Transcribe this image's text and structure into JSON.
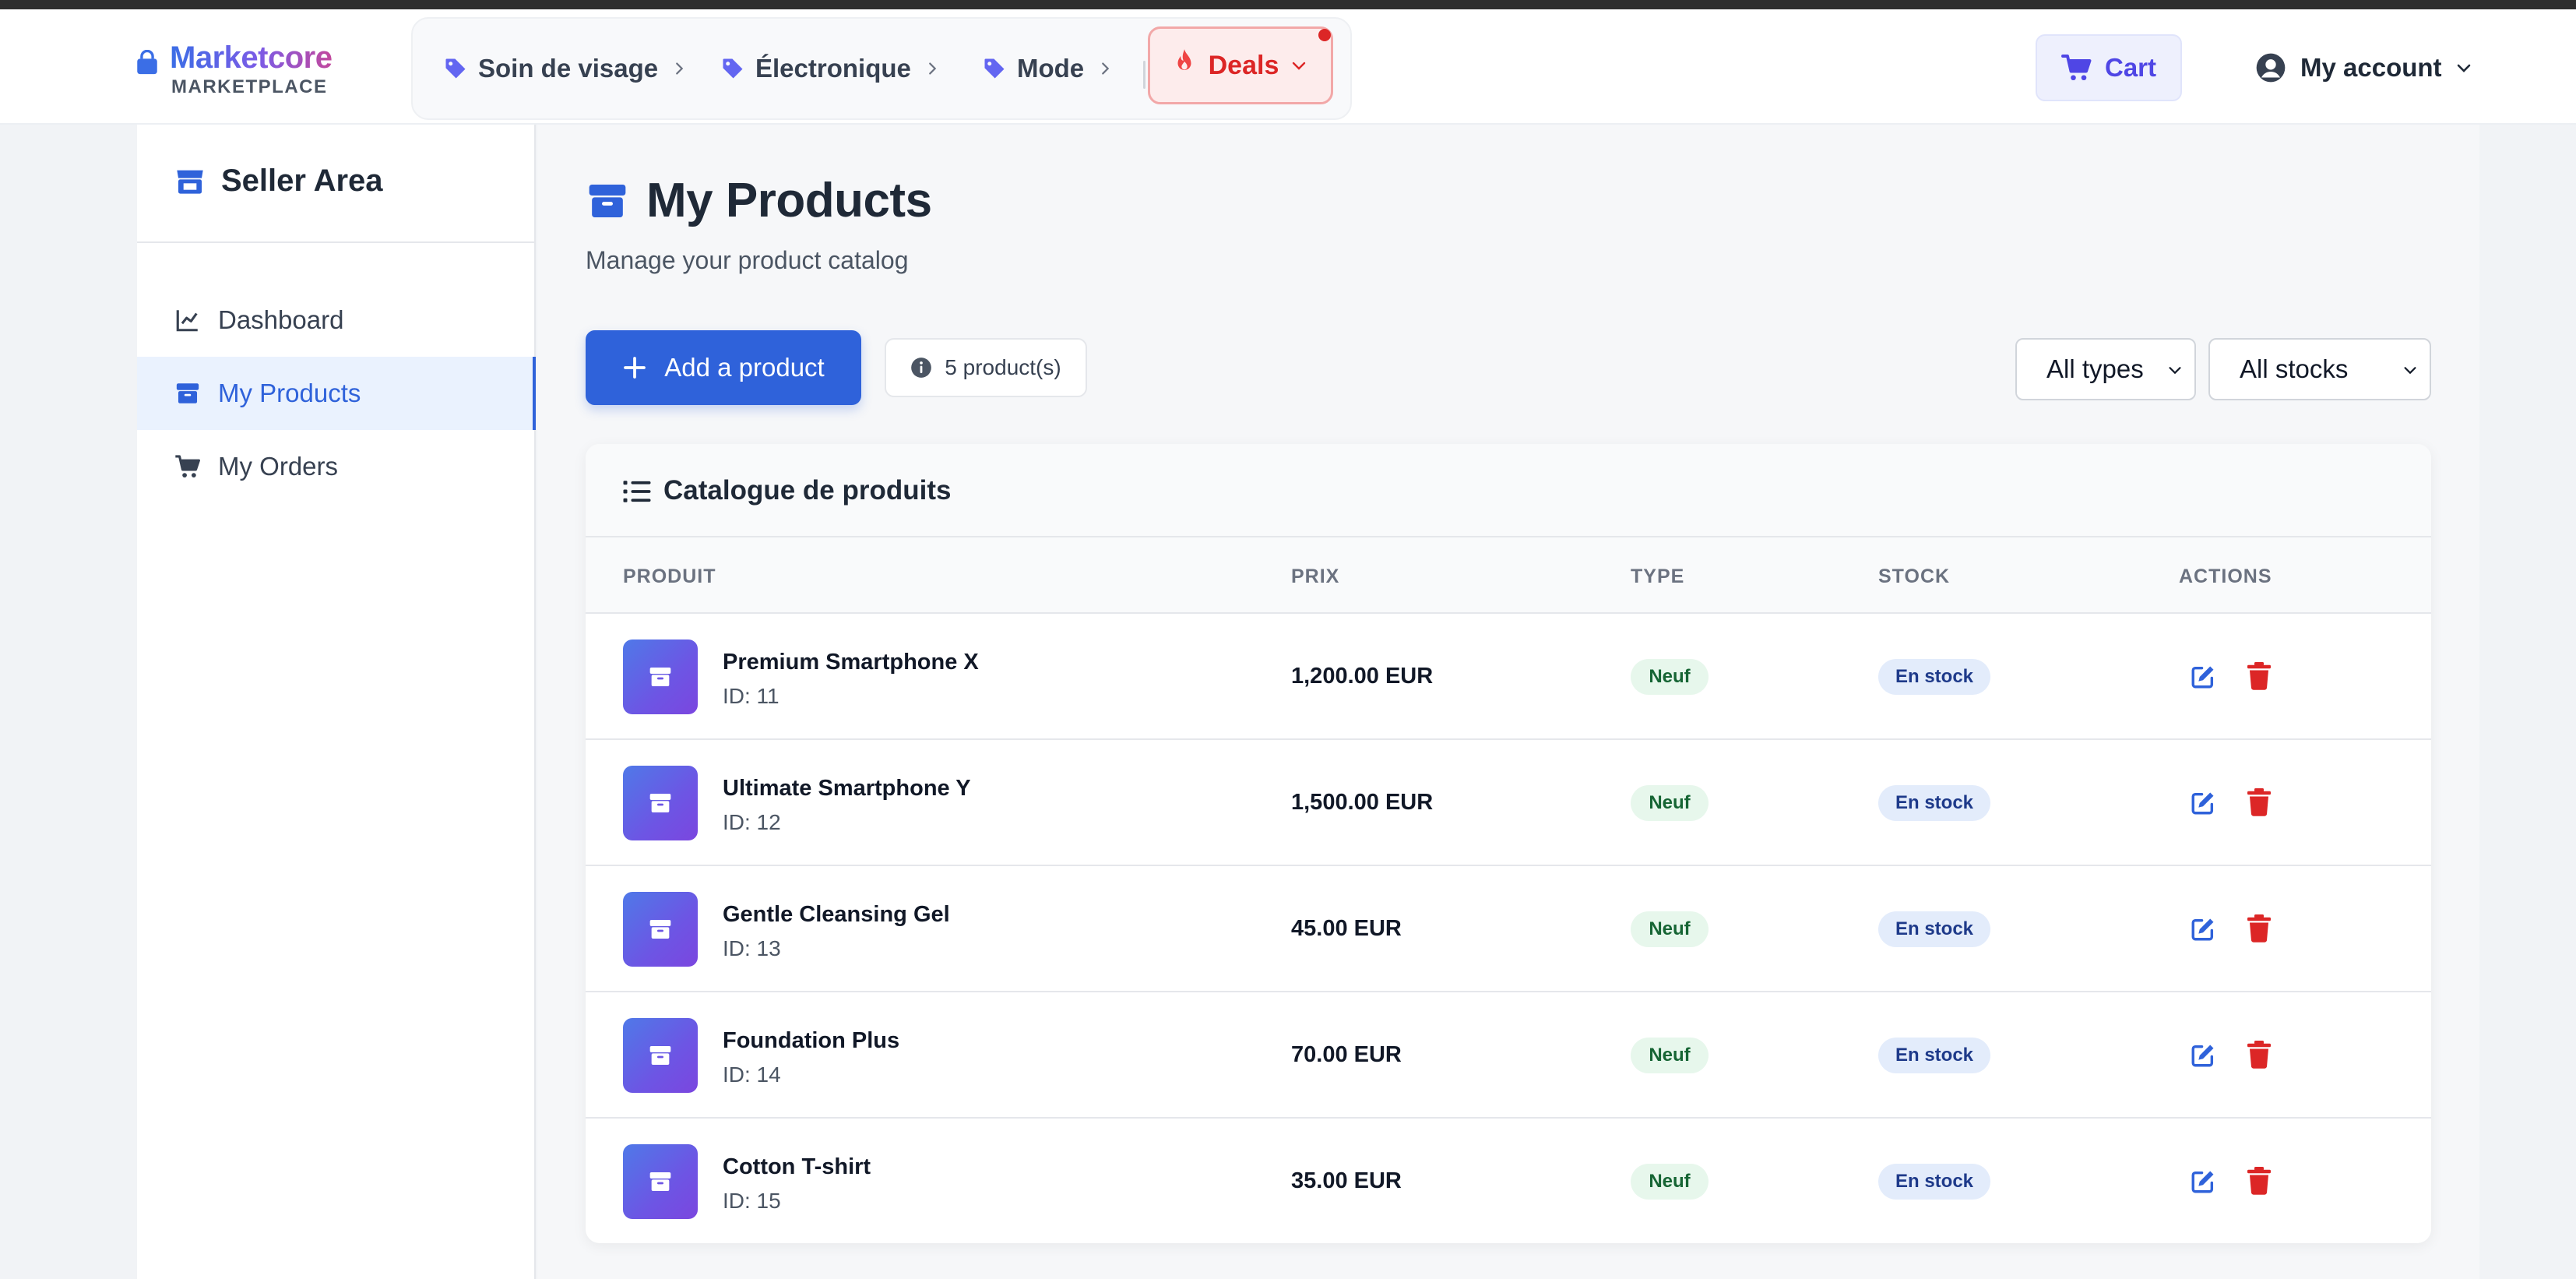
{
  "brand": {
    "name": "Marketcore",
    "tagline": "MARKETPLACE"
  },
  "categories": [
    {
      "label": "Soin de visage"
    },
    {
      "label": "Électronique"
    },
    {
      "label": "Mode"
    }
  ],
  "deals": {
    "label": "Deals"
  },
  "cart": {
    "label": "Cart"
  },
  "account": {
    "label": "My account"
  },
  "sidebar": {
    "title": "Seller Area",
    "items": [
      {
        "label": "Dashboard",
        "icon": "chart-line-icon"
      },
      {
        "label": "My Products",
        "icon": "box-icon",
        "active": true
      },
      {
        "label": "My Orders",
        "icon": "cart-icon"
      }
    ]
  },
  "main": {
    "title": "My Products",
    "subtitle": "Manage your product catalog",
    "add_button": "Add a product",
    "count_label": "5 product(s)",
    "filters": {
      "type": "All types",
      "stock": "All stocks"
    }
  },
  "catalog": {
    "title": "Catalogue de produits",
    "columns": {
      "product": "PRODUIT",
      "price": "PRIX",
      "type": "TYPE",
      "stock": "STOCK",
      "actions": "ACTIONS"
    },
    "rows": [
      {
        "name": "Premium Smartphone X",
        "id": "ID: 11",
        "price": "1,200.00 EUR",
        "type": "Neuf",
        "stock": "En stock"
      },
      {
        "name": "Ultimate Smartphone Y",
        "id": "ID: 12",
        "price": "1,500.00 EUR",
        "type": "Neuf",
        "stock": "En stock"
      },
      {
        "name": "Gentle Cleansing Gel",
        "id": "ID: 13",
        "price": "45.00 EUR",
        "type": "Neuf",
        "stock": "En stock"
      },
      {
        "name": "Foundation Plus",
        "id": "ID: 14",
        "price": "70.00 EUR",
        "type": "Neuf",
        "stock": "En stock"
      },
      {
        "name": "Cotton T-shirt",
        "id": "ID: 15",
        "price": "35.00 EUR",
        "type": "Neuf",
        "stock": "En stock"
      }
    ]
  },
  "colors": {
    "primary": "#2f62da",
    "danger": "#dc2626",
    "tag": "#6366f1",
    "success_bg": "#e7f7ec",
    "info_bg": "#e3ecfb"
  }
}
